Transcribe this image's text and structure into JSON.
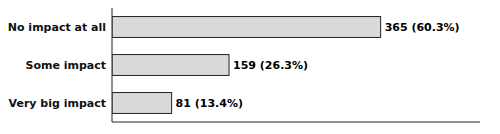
{
  "chart_data": {
    "type": "bar",
    "orientation": "horizontal",
    "categories": [
      "Very big impact",
      "Some impact",
      "No impact at all"
    ],
    "values": [
      81,
      159,
      365
    ],
    "value_labels": [
      "81 (13.4%)",
      "159 (26.3%)",
      "365 (60.3%)"
    ],
    "color": "#d9d9d9",
    "xlim": [
      0,
      500
    ],
    "xticks": [],
    "data_labels": true,
    "tick_labels": "y",
    "grid": false
  }
}
